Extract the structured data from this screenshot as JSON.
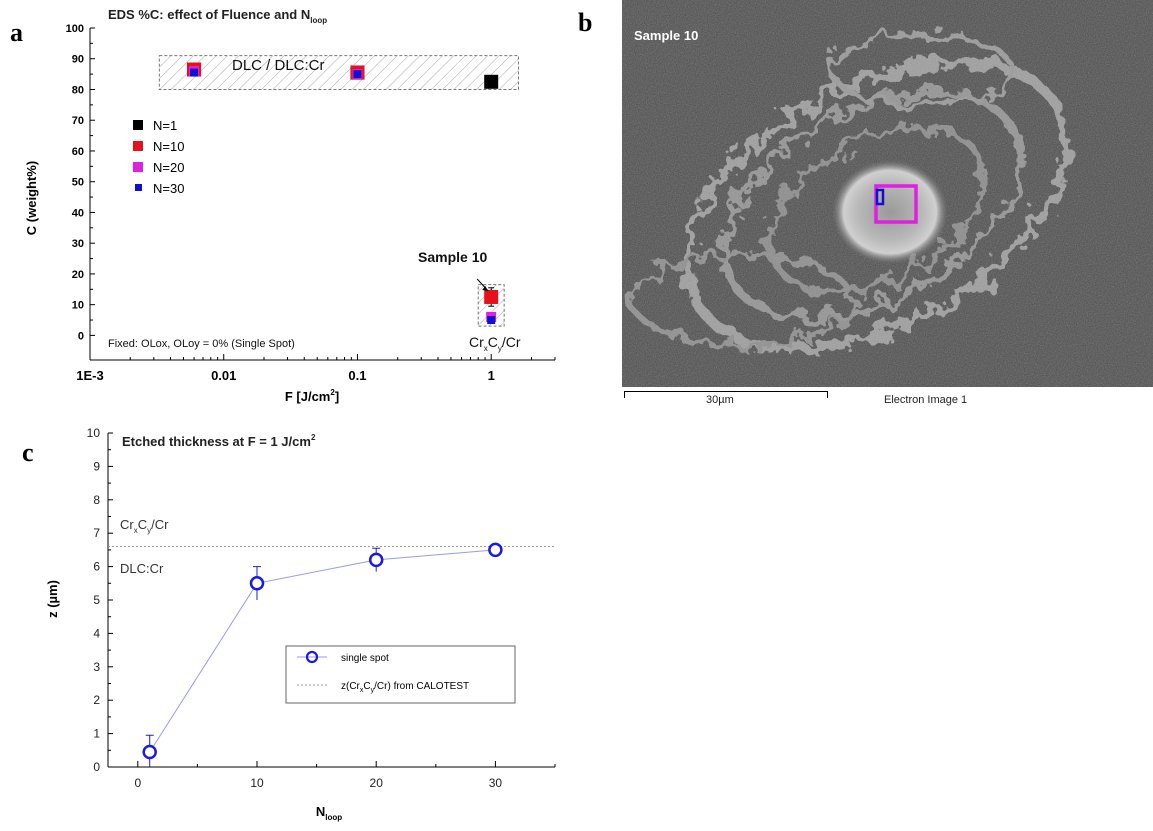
{
  "panels": {
    "a": "a",
    "b": "b",
    "c": "c"
  },
  "chart_data": [
    {
      "type": "scatter",
      "title": "EDS %C: effect of Fluence and N",
      "title_sub": "loop",
      "xlabel": "F [J/cm",
      "xlabel_sup": "2",
      "xlabel_end": "]",
      "ylabel": "C (weight%)",
      "xscale": "log",
      "xlim": [
        0.001,
        3
      ],
      "ylim": [
        -8,
        100
      ],
      "x_ticks": [
        "1E-3",
        "0.01",
        "0.1",
        "1"
      ],
      "y_ticks": [
        "0",
        "10",
        "20",
        "30",
        "40",
        "50",
        "60",
        "70",
        "80",
        "90",
        "100"
      ],
      "series": [
        {
          "name": "N=1",
          "color": "#000000",
          "x": [
            0.006,
            0.1,
            1
          ],
          "y": [
            86.5,
            85.5,
            82.5
          ],
          "err": [
            0.5,
            0.5,
            1.5
          ]
        },
        {
          "name": "N=10",
          "color": "#e8101a",
          "x": [
            0.006,
            0.1,
            1
          ],
          "y": [
            86.5,
            85.5,
            12.5
          ],
          "err": [
            0.5,
            0.5,
            3
          ]
        },
        {
          "name": "N=20",
          "color": "#e020e0",
          "x": [
            0.006,
            0.1,
            1
          ],
          "y": [
            86.0,
            85.0,
            6.0
          ],
          "err": [
            0.5,
            0.5,
            0.5
          ]
        },
        {
          "name": "N=30",
          "color": "#1010d0",
          "x": [
            0.006,
            0.1,
            1
          ],
          "y": [
            85.5,
            85.0,
            5.0
          ],
          "err": [
            0.5,
            0.5,
            0.5
          ]
        }
      ],
      "region_dlc": {
        "x": [
          0.0033,
          1.6
        ],
        "y": [
          80,
          91
        ],
        "label": "DLC / DLC:Cr"
      },
      "region_crc": {
        "x": [
          0.8,
          1.25
        ],
        "y": [
          3,
          16.5
        ],
        "label_parts": [
          "Cr",
          "x",
          "C",
          "y",
          "/Cr"
        ]
      },
      "annotation": {
        "text": "Sample 10",
        "x": 1,
        "y": 12.5
      },
      "fixed_note": "Fixed: OLox, OLoy = 0% (Single Spot)",
      "legend_position": "upper-left"
    },
    {
      "type": "line",
      "title": "Etched thickness at F = 1 J/cm",
      "title_sup": "2",
      "xlabel": "N",
      "xlabel_sub": "loop",
      "ylabel": "z (µm)",
      "xlim": [
        -2.5,
        35
      ],
      "ylim": [
        0,
        10
      ],
      "x_ticks": [
        0,
        10,
        20,
        30
      ],
      "y_ticks": [
        0,
        1,
        2,
        3,
        4,
        5,
        6,
        7,
        8,
        9,
        10
      ],
      "series": [
        {
          "name": "single spot",
          "color": "#1a1ae6",
          "x": [
            1,
            10,
            20,
            30
          ],
          "y": [
            0.45,
            5.5,
            6.2,
            6.5
          ],
          "err": [
            0.5,
            0.5,
            0.35,
            0.1
          ]
        }
      ],
      "reference_line": {
        "y": 6.6,
        "legend": [
          "z(Cr",
          "x",
          "C",
          "y",
          "/Cr) from CALOTEST"
        ]
      },
      "region_upper": [
        "Cr",
        "x",
        "C",
        "y",
        "/Cr"
      ],
      "region_lower": "DLC:Cr",
      "legend_position": "center-right"
    }
  ],
  "sem_image": {
    "label": "Sample 10",
    "scale_bar": "30µm",
    "caption": "Electron Image 1",
    "marker_color": "#e020e0"
  }
}
